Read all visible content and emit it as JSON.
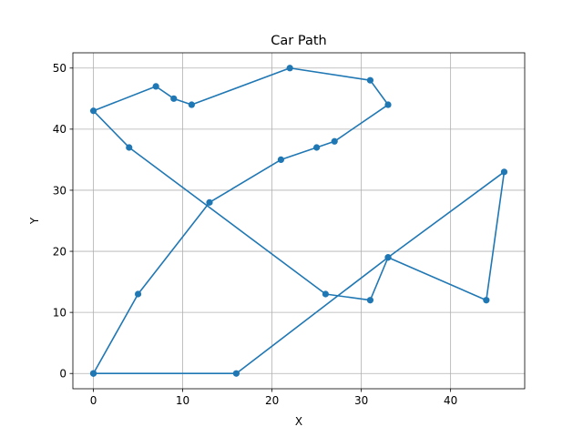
{
  "chart_data": {
    "type": "line",
    "title": "Car Path",
    "xlabel": "X",
    "ylabel": "Y",
    "xlim": [
      -2.3,
      48.3
    ],
    "ylim": [
      -2.5,
      52.5
    ],
    "xticks": [
      0,
      10,
      20,
      30,
      40
    ],
    "yticks": [
      0,
      10,
      20,
      30,
      40,
      50
    ],
    "grid": true,
    "series": [
      {
        "color": "#1f77b4",
        "marker": "circle",
        "points": [
          [
            0,
            0
          ],
          [
            16,
            0
          ],
          [
            33,
            19
          ],
          [
            44,
            12
          ],
          [
            46,
            33
          ],
          [
            33,
            19
          ],
          [
            31,
            12
          ],
          [
            26,
            13
          ],
          [
            4,
            37
          ],
          [
            0,
            43
          ],
          [
            7,
            47
          ],
          [
            9,
            45
          ],
          [
            11,
            44
          ],
          [
            22,
            50
          ],
          [
            31,
            48
          ],
          [
            33,
            44
          ],
          [
            27,
            38
          ],
          [
            25,
            37
          ],
          [
            21,
            35
          ],
          [
            13,
            28
          ],
          [
            5,
            13
          ],
          [
            0,
            0
          ]
        ]
      }
    ]
  }
}
